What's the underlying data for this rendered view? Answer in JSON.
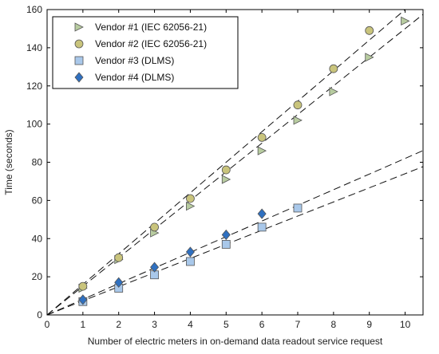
{
  "chart_data": {
    "type": "scatter",
    "title": "",
    "xlabel": "Number of electric meters in on-demand data readout service request",
    "ylabel": "Time (seconds)",
    "xlim": [
      0,
      10.5
    ],
    "ylim": [
      0,
      160
    ],
    "xticks": [
      0,
      1,
      2,
      3,
      4,
      5,
      6,
      7,
      8,
      9,
      10
    ],
    "yticks": [
      0,
      20,
      40,
      60,
      80,
      100,
      120,
      140,
      160
    ],
    "grid": false,
    "legend_position": "top-left",
    "series": [
      {
        "name": "Vendor #1 (IEC 62056-21)",
        "marker": "triangle-right",
        "color": "#b8cca0",
        "x": [
          1,
          2,
          3,
          4,
          5,
          6,
          7,
          8,
          9,
          10
        ],
        "y": [
          14,
          29,
          43,
          57,
          71,
          86,
          102,
          117,
          135,
          154
        ],
        "trend_slope": 15.0
      },
      {
        "name": "Vendor #2 (IEC 62056-21)",
        "marker": "circle",
        "color": "#c9c47c",
        "x": [
          1,
          2,
          3,
          4,
          5,
          6,
          7,
          8,
          9
        ],
        "y": [
          15,
          30,
          46,
          61,
          76,
          93,
          110,
          129,
          149
        ],
        "trend_slope": 16.0
      },
      {
        "name": "Vendor #3 (DLMS)",
        "marker": "square",
        "color": "#a9c8ea",
        "x": [
          1,
          2,
          3,
          4,
          5,
          6,
          7
        ],
        "y": [
          7,
          14,
          21,
          28,
          37,
          46,
          56
        ],
        "trend_slope": 7.4
      },
      {
        "name": "Vendor #4 (DLMS)",
        "marker": "diamond",
        "color": "#2f70c0",
        "x": [
          1,
          2,
          3,
          4,
          5,
          6
        ],
        "y": [
          8,
          17,
          25,
          33,
          42,
          53
        ],
        "trend_slope": 8.2
      }
    ]
  }
}
